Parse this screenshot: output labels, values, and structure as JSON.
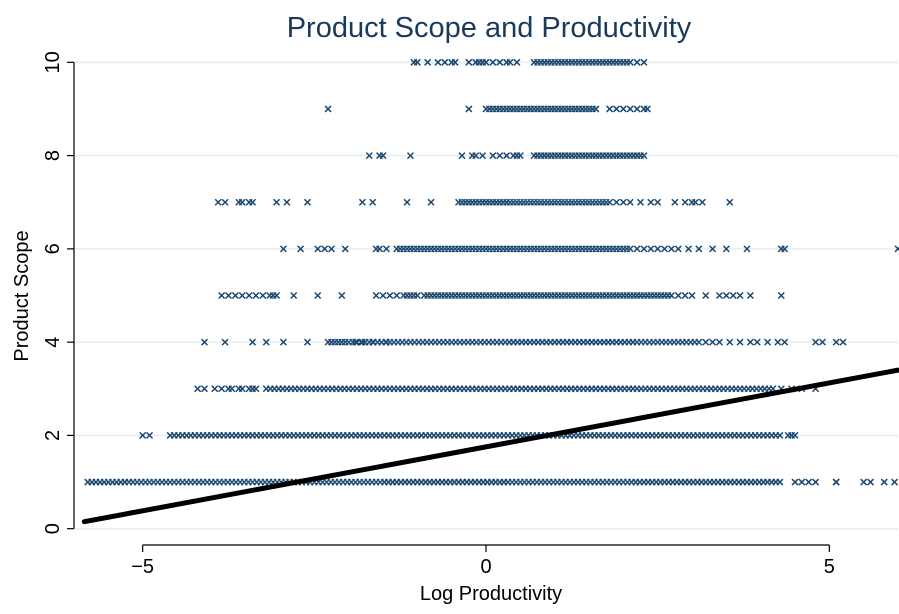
{
  "chart_data": {
    "type": "scatter",
    "title": "Product Scope and Productivity",
    "xlabel": "Log Productivity",
    "ylabel": "Product Scope",
    "xlim": [
      -6.0,
      6.0
    ],
    "ylim": [
      -0.35,
      10.35
    ],
    "x_ticks": [
      -5,
      0,
      5
    ],
    "x_tick_labels": [
      "−5",
      "0",
      "5"
    ],
    "y_ticks": [
      0,
      2,
      4,
      6,
      8,
      10
    ],
    "y_tick_labels": [
      "0",
      "2",
      "4",
      "6",
      "8",
      "10"
    ],
    "grid": true,
    "legend": "none",
    "marker": "x",
    "colors": {
      "points": "#1a476f",
      "fit_line": "#000000",
      "title": "#1a3a5c",
      "grid": "#e6eef1"
    },
    "rows": [
      {
        "y": 1,
        "bands": [
          [
            -5.8,
            4.3,
            0.06
          ]
        ],
        "points": [
          4.5,
          4.6,
          4.7,
          4.8,
          5.1,
          5.1,
          5.5,
          5.6,
          5.8,
          5.95
        ]
      },
      {
        "y": 2,
        "bands": [
          [
            -4.6,
            4.3,
            0.06
          ]
        ],
        "points": [
          -5.0,
          -4.9,
          4.4,
          4.45,
          4.5
        ]
      },
      {
        "y": 3,
        "bands": [
          [
            -3.2,
            4.2,
            0.06
          ]
        ],
        "points": [
          -4.2,
          -4.1,
          -3.95,
          -3.85,
          -3.75,
          -3.7,
          -3.6,
          -3.55,
          -3.45,
          -3.4,
          -3.35,
          4.3,
          4.45,
          4.6,
          4.8
        ]
      },
      {
        "y": 4,
        "bands": [
          [
            -2.0,
            3.1,
            0.06
          ]
        ],
        "points": [
          -4.1,
          -3.8,
          -3.4,
          -3.2,
          -2.95,
          -2.6,
          -2.3,
          -2.25,
          -2.2,
          -2.15,
          -2.1,
          -2.05,
          -1.9,
          -1.8,
          -1.65,
          -1.45,
          3.2,
          3.3,
          3.4,
          3.55,
          3.7,
          3.85,
          3.95,
          4.1,
          4.25,
          4.35,
          4.8,
          4.9,
          5.1,
          5.2
        ]
      },
      {
        "y": 5,
        "bands": [
          [
            -0.9,
            2.7,
            0.05
          ]
        ],
        "points": [
          -3.85,
          -3.75,
          -3.65,
          -3.55,
          -3.45,
          -3.35,
          -3.25,
          -3.15,
          -3.1,
          -3.05,
          -2.8,
          -2.45,
          -2.1,
          -1.6,
          -1.5,
          -1.4,
          -1.3,
          -1.2,
          -1.15,
          -1.1,
          -1.05,
          -1.0,
          2.8,
          2.9,
          3.0,
          3.2,
          3.4,
          3.5,
          3.6,
          3.7,
          3.85,
          4.3
        ]
      },
      {
        "y": 6,
        "bands": [
          [
            -1.3,
            2.1,
            0.05
          ]
        ],
        "points": [
          -2.95,
          -2.7,
          -2.45,
          -2.35,
          -2.25,
          -2.05,
          -1.6,
          -1.55,
          -1.45,
          2.2,
          2.3,
          2.4,
          2.5,
          2.6,
          2.7,
          2.8,
          2.95,
          3.1,
          3.3,
          3.5,
          3.8,
          4.3,
          4.35,
          6.0
        ]
      },
      {
        "y": 7,
        "bands": [
          [
            -0.3,
            1.8,
            0.05
          ]
        ],
        "points": [
          -3.9,
          -3.8,
          -3.6,
          -3.55,
          -3.45,
          -3.4,
          -3.05,
          -2.9,
          -2.6,
          -1.8,
          -1.65,
          -1.15,
          -0.8,
          -0.4,
          -0.35,
          1.9,
          2.0,
          2.1,
          2.25,
          2.4,
          2.5,
          2.75,
          2.9,
          3.0,
          3.05,
          3.15,
          3.55
        ]
      },
      {
        "y": 8,
        "bands": [
          [
            0.7,
            2.3,
            0.05
          ]
        ],
        "points": [
          -1.7,
          -1.55,
          -1.5,
          -1.1,
          -0.35,
          -0.2,
          -0.15,
          -0.05,
          0.1,
          0.2,
          0.3,
          0.4,
          0.45,
          0.5
        ]
      },
      {
        "y": 9,
        "bands": [
          [
            0.0,
            1.6,
            0.05
          ]
        ],
        "points": [
          -2.3,
          -0.25,
          1.8,
          1.9,
          2.0,
          2.1,
          2.2,
          2.3,
          2.35
        ]
      },
      {
        "y": 10,
        "bands": [
          [
            0.7,
            2.1,
            0.05
          ]
        ],
        "points": [
          -1.05,
          -1.0,
          -0.85,
          -0.7,
          -0.6,
          -0.5,
          -0.45,
          -0.25,
          -0.15,
          -0.1,
          -0.05,
          0.0,
          0.1,
          0.2,
          0.3,
          0.35,
          0.45,
          2.2,
          2.3
        ]
      }
    ],
    "fit_line": {
      "x": [
        -5.85,
        6.0
      ],
      "y": [
        0.15,
        3.4
      ]
    }
  }
}
